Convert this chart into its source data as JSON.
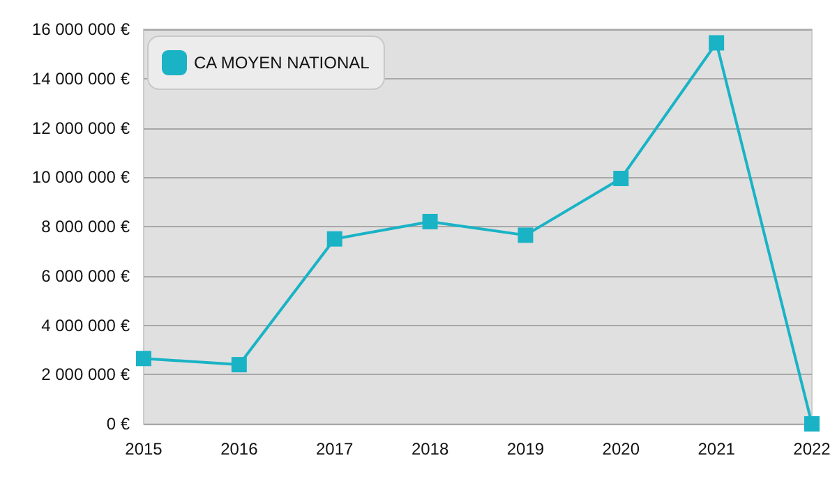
{
  "chart_data": {
    "type": "line",
    "categories": [
      "2015",
      "2016",
      "2017",
      "2018",
      "2019",
      "2020",
      "2021",
      "2022"
    ],
    "series": [
      {
        "name": "CA MOYEN NATIONAL",
        "color": "#1ab3c6",
        "values": [
          2650000,
          2400000,
          7500000,
          8200000,
          7650000,
          9950000,
          15450000,
          0
        ]
      }
    ],
    "ylim": [
      0,
      16000000
    ],
    "yticks": [
      {
        "value": 0,
        "label": "0 €"
      },
      {
        "value": 2000000,
        "label": "2 000 000 €"
      },
      {
        "value": 4000000,
        "label": "4 000 000 €"
      },
      {
        "value": 6000000,
        "label": "6 000 000 €"
      },
      {
        "value": 8000000,
        "label": "8 000 000 €"
      },
      {
        "value": 10000000,
        "label": "10 000 000 €"
      },
      {
        "value": 12000000,
        "label": "12 000 000 €"
      },
      {
        "value": 14000000,
        "label": "14 000 000 €"
      },
      {
        "value": 16000000,
        "label": "16 000 000 €"
      }
    ],
    "grid": "y",
    "legend": "top left",
    "marker": "square",
    "line_style": "solid"
  }
}
